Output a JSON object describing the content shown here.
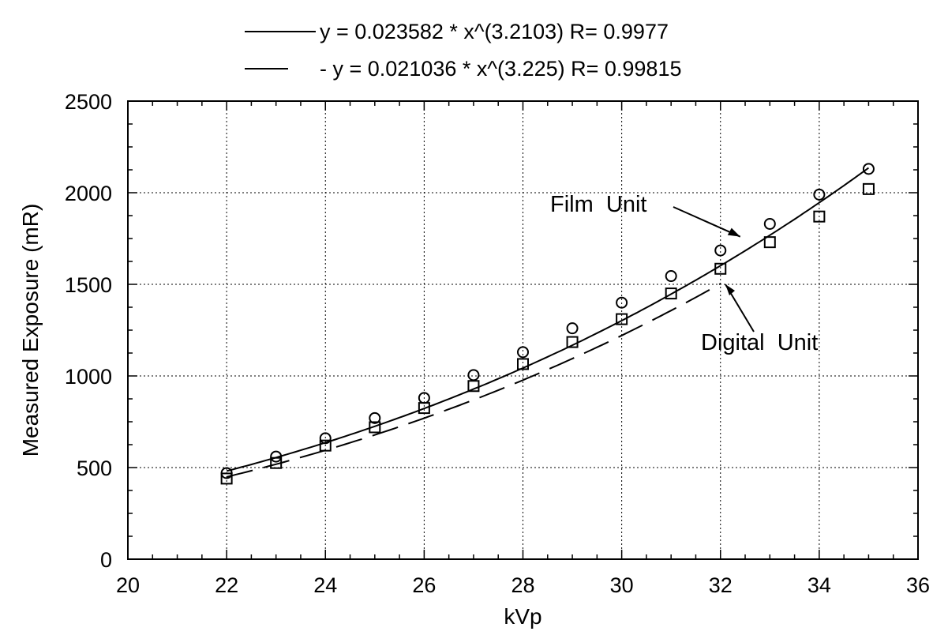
{
  "chart_data": {
    "type": "scatter",
    "xlabel": "kVp",
    "ylabel": "Measured Exposure (mR)",
    "xlim": [
      20,
      36
    ],
    "ylim": [
      0,
      2500
    ],
    "x_ticks": [
      20,
      22,
      24,
      26,
      28,
      30,
      32,
      34,
      36
    ],
    "y_ticks": [
      0,
      500,
      1000,
      1500,
      2000,
      2500
    ],
    "grid": true,
    "legend_position": "top",
    "series": [
      {
        "name": "Film Unit",
        "marker": "circle",
        "x": [
          22,
          23,
          24,
          25,
          26,
          27,
          28,
          29,
          30,
          31,
          32,
          33,
          34,
          35
        ],
        "y": [
          470,
          560,
          660,
          770,
          880,
          1005,
          1130,
          1260,
          1400,
          1545,
          1685,
          1830,
          1990,
          2130
        ]
      },
      {
        "name": "Digital Unit",
        "marker": "square",
        "x": [
          22,
          23,
          24,
          25,
          26,
          27,
          28,
          29,
          30,
          31,
          32,
          33,
          34,
          35
        ],
        "y": [
          440,
          525,
          620,
          720,
          825,
          945,
          1065,
          1185,
          1310,
          1450,
          1585,
          1730,
          1870,
          2020
        ]
      }
    ],
    "fits": [
      {
        "legend_label": "y = 0.023582 * x^(3.2103) R= 0.9977",
        "coefficient": 0.023582,
        "exponent": 3.2103,
        "x_range": [
          22,
          35
        ],
        "line_style": "solid"
      },
      {
        "legend_label": "- y = 0.021036 * x^(3.225) R= 0.99815",
        "coefficient": 0.021036,
        "exponent": 3.225,
        "x_range": [
          22,
          32
        ],
        "line_style": "dashed"
      }
    ],
    "annotations": [
      {
        "text": "Film  Unit",
        "target_x": 32.4,
        "target_y": 1760
      },
      {
        "text": "Digital  Unit",
        "target_x": 32.1,
        "target_y": 1500
      }
    ]
  }
}
